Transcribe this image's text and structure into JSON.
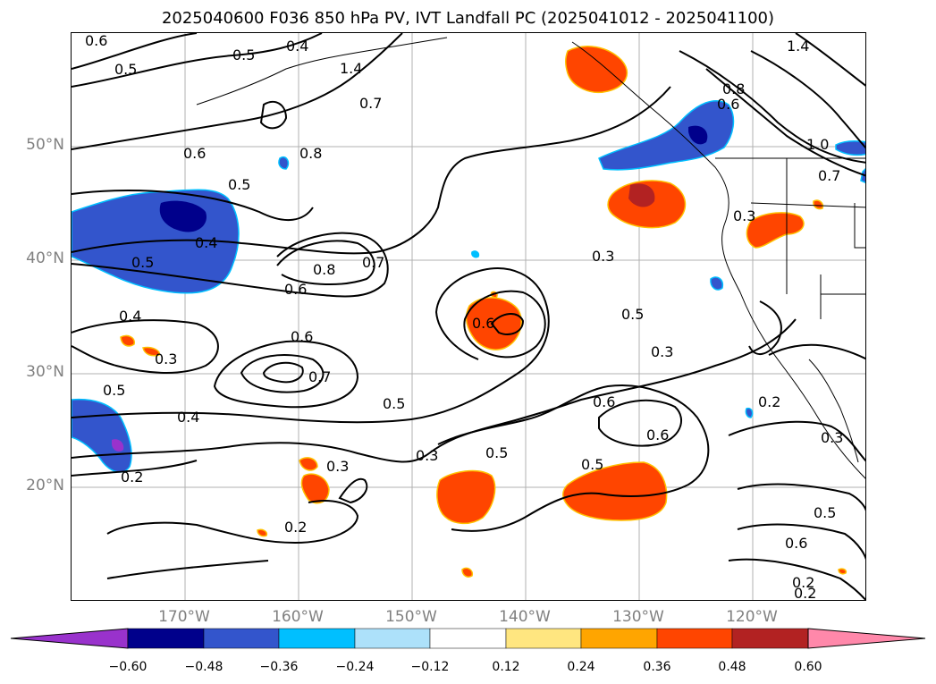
{
  "title": "2025040600 F036 850 hPa PV, IVT Landfall PC (2025041012 - 2025041100)",
  "axes": {
    "lat_labels": [
      "50°N",
      "40°N",
      "30°N",
      "20°N"
    ],
    "lon_labels": [
      "170°W",
      "160°W",
      "150°W",
      "140°W",
      "130°W",
      "120°W"
    ],
    "grid": true
  },
  "contour_labels": [
    "0.6",
    "0.5",
    "0.5",
    "0.4",
    "1.4",
    "0.7",
    "0.8",
    "0.6",
    "0.5",
    "0.4",
    "0.5",
    "0.8",
    "0.7",
    "0.6",
    "0.4",
    "0.3",
    "0.6",
    "0.7",
    "0.5",
    "0.4",
    "0.2",
    "0.3",
    "0.2",
    "0.5",
    "0.3",
    "0.6",
    "0.5",
    "0.3",
    "0.6",
    "0.5",
    "0.5",
    "0.6",
    "0.3",
    "0.2",
    "0.3",
    "0.2",
    "1.0",
    "0.7",
    "0.3",
    "0.6",
    "1.4",
    "0.8",
    "0.5",
    "0.6",
    "0.2"
  ],
  "colorbar": {
    "ticks": [
      "−0.60",
      "−0.48",
      "−0.36",
      "−0.24",
      "−0.12",
      "0.12",
      "0.24",
      "0.36",
      "0.48",
      "0.60"
    ],
    "colors": [
      "#9932CC",
      "#00008B",
      "#3355CC",
      "#00BFFF",
      "#ADE1FA",
      "#FFFFFF",
      "#FFE680",
      "#FFA500",
      "#FF4500",
      "#B22222",
      "#FF88AA"
    ]
  }
}
